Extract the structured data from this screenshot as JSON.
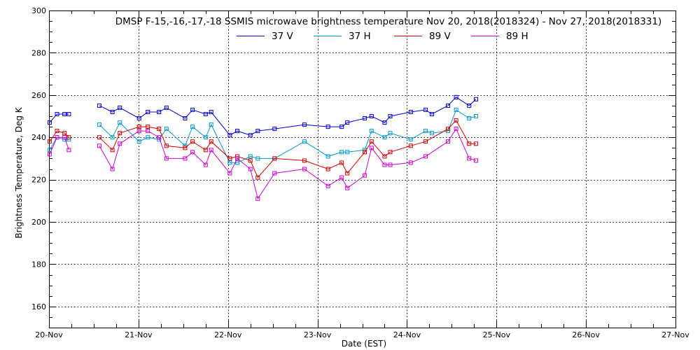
{
  "chart_data": {
    "type": "line",
    "title": "DMSP F-15,-16,-17,-18 SSMIS microwave brightness temperature Nov 20, 2018(2018324) - Nov 27, 2018(2018331)",
    "xlabel": "Date (EST)",
    "ylabel": "Brightness Temperature, Deg K",
    "xlim": [
      "2018-11-20T00:00",
      "2018-11-27T00:00"
    ],
    "ylim": [
      150,
      300
    ],
    "x_ticks": [
      "20-Nov",
      "21-Nov",
      "22-Nov",
      "23-Nov",
      "24-Nov",
      "25-Nov",
      "26-Nov",
      "27-Nov"
    ],
    "y_ticks": [
      160,
      180,
      200,
      220,
      240,
      260,
      280,
      300
    ],
    "grid": true,
    "legend_position": "top",
    "series": [
      {
        "name": "37 V",
        "color": "#0000cc",
        "points": [
          [
            "2018-11-20T00:10",
            247
          ],
          [
            "2018-11-20T02:10",
            251
          ],
          [
            "2018-11-20T04:10",
            251
          ],
          [
            "2018-11-20T05:20",
            251
          ],
          [
            "2018-11-20T13:30",
            255
          ],
          [
            "2018-11-20T17:00",
            252
          ],
          [
            "2018-11-20T19:00",
            254
          ],
          [
            "2018-11-21T00:10",
            249
          ],
          [
            "2018-11-21T02:30",
            252
          ],
          [
            "2018-11-21T05:30",
            252
          ],
          [
            "2018-11-21T07:30",
            254
          ],
          [
            "2018-11-21T12:30",
            249
          ],
          [
            "2018-11-21T14:30",
            253
          ],
          [
            "2018-11-21T18:00",
            251
          ],
          [
            "2018-11-21T19:30",
            252
          ],
          [
            "2018-11-22T00:30",
            241
          ],
          [
            "2018-11-22T02:30",
            243
          ],
          [
            "2018-11-22T06:00",
            241
          ],
          [
            "2018-11-22T08:00",
            243
          ],
          [
            "2018-11-22T12:30",
            244
          ],
          [
            "2018-11-22T20:30",
            246
          ],
          [
            "2018-11-23T02:50",
            245
          ],
          [
            "2018-11-23T06:30",
            245
          ],
          [
            "2018-11-23T08:00",
            247
          ],
          [
            "2018-11-23T12:40",
            249
          ],
          [
            "2018-11-23T14:30",
            250
          ],
          [
            "2018-11-23T18:00",
            247
          ],
          [
            "2018-11-23T19:30",
            250
          ],
          [
            "2018-11-24T01:00",
            252
          ],
          [
            "2018-11-24T05:00",
            253
          ],
          [
            "2018-11-24T06:40",
            251
          ],
          [
            "2018-11-24T11:00",
            255
          ],
          [
            "2018-11-24T13:10",
            259
          ],
          [
            "2018-11-24T16:40",
            255
          ],
          [
            "2018-11-24T18:30",
            258
          ]
        ]
      },
      {
        "name": "37 H",
        "color": "#0099cc",
        "points": [
          [
            "2018-11-20T00:10",
            234
          ],
          [
            "2018-11-20T02:10",
            240
          ],
          [
            "2018-11-20T04:10",
            239
          ],
          [
            "2018-11-20T05:20",
            239
          ],
          [
            "2018-11-20T13:30",
            246
          ],
          [
            "2018-11-20T17:00",
            240
          ],
          [
            "2018-11-20T19:00",
            247
          ],
          [
            "2018-11-21T00:10",
            238
          ],
          [
            "2018-11-21T02:30",
            240
          ],
          [
            "2018-11-21T05:30",
            239
          ],
          [
            "2018-11-21T07:30",
            244
          ],
          [
            "2018-11-21T12:30",
            236
          ],
          [
            "2018-11-21T14:30",
            245
          ],
          [
            "2018-11-21T18:00",
            240
          ],
          [
            "2018-11-21T19:30",
            246
          ],
          [
            "2018-11-22T00:30",
            228
          ],
          [
            "2018-11-22T02:30",
            228
          ],
          [
            "2018-11-22T06:00",
            231
          ],
          [
            "2018-11-22T08:00",
            230
          ],
          [
            "2018-11-22T12:30",
            230
          ],
          [
            "2018-11-22T20:30",
            238
          ],
          [
            "2018-11-23T02:50",
            231
          ],
          [
            "2018-11-23T06:30",
            233
          ],
          [
            "2018-11-23T08:00",
            233
          ],
          [
            "2018-11-23T12:40",
            234
          ],
          [
            "2018-11-23T14:30",
            243
          ],
          [
            "2018-11-23T18:00",
            240
          ],
          [
            "2018-11-23T19:30",
            242
          ],
          [
            "2018-11-24T01:00",
            239
          ],
          [
            "2018-11-24T05:00",
            243
          ],
          [
            "2018-11-24T06:40",
            242
          ],
          [
            "2018-11-24T11:00",
            243
          ],
          [
            "2018-11-24T13:10",
            253
          ],
          [
            "2018-11-24T16:40",
            249
          ],
          [
            "2018-11-24T18:30",
            250
          ]
        ]
      },
      {
        "name": "89 V",
        "color": "#cc0000",
        "points": [
          [
            "2018-11-20T00:10",
            238
          ],
          [
            "2018-11-20T02:10",
            243
          ],
          [
            "2018-11-20T04:10",
            242
          ],
          [
            "2018-11-20T05:20",
            240
          ],
          [
            "2018-11-20T13:30",
            240
          ],
          [
            "2018-11-20T17:00",
            234
          ],
          [
            "2018-11-20T19:00",
            242
          ],
          [
            "2018-11-21T00:10",
            245
          ],
          [
            "2018-11-21T02:30",
            245
          ],
          [
            "2018-11-21T05:30",
            244
          ],
          [
            "2018-11-21T07:30",
            236
          ],
          [
            "2018-11-21T12:30",
            235
          ],
          [
            "2018-11-21T14:30",
            238
          ],
          [
            "2018-11-21T18:00",
            234
          ],
          [
            "2018-11-21T19:30",
            238
          ],
          [
            "2018-11-22T00:30",
            230
          ],
          [
            "2018-11-22T02:30",
            231
          ],
          [
            "2018-11-22T06:00",
            229
          ],
          [
            "2018-11-22T08:00",
            221
          ],
          [
            "2018-11-22T12:30",
            230
          ],
          [
            "2018-11-22T20:30",
            229
          ],
          [
            "2018-11-23T02:50",
            225
          ],
          [
            "2018-11-23T06:30",
            228
          ],
          [
            "2018-11-23T08:00",
            223
          ],
          [
            "2018-11-23T12:40",
            233
          ],
          [
            "2018-11-23T14:30",
            238
          ],
          [
            "2018-11-23T18:00",
            231
          ],
          [
            "2018-11-23T19:30",
            233
          ],
          [
            "2018-11-24T01:00",
            236
          ],
          [
            "2018-11-24T05:00",
            238
          ],
          [
            "2018-11-24T11:00",
            244
          ],
          [
            "2018-11-24T13:10",
            248
          ],
          [
            "2018-11-24T16:40",
            237
          ],
          [
            "2018-11-24T18:30",
            237
          ]
        ]
      },
      {
        "name": "89 H",
        "color": "#cc00cc",
        "points": [
          [
            "2018-11-20T00:10",
            232
          ],
          [
            "2018-11-20T02:10",
            240
          ],
          [
            "2018-11-20T04:10",
            240
          ],
          [
            "2018-11-20T05:20",
            234
          ],
          [
            "2018-11-20T13:30",
            236
          ],
          [
            "2018-11-20T17:00",
            225
          ],
          [
            "2018-11-20T19:00",
            237
          ],
          [
            "2018-11-21T00:10",
            243
          ],
          [
            "2018-11-21T02:30",
            243
          ],
          [
            "2018-11-21T05:30",
            240
          ],
          [
            "2018-11-21T07:30",
            230
          ],
          [
            "2018-11-21T12:30",
            230
          ],
          [
            "2018-11-21T14:30",
            233
          ],
          [
            "2018-11-21T18:00",
            227
          ],
          [
            "2018-11-21T19:30",
            234
          ],
          [
            "2018-11-22T00:30",
            223
          ],
          [
            "2018-11-22T02:30",
            230
          ],
          [
            "2018-11-22T06:00",
            225
          ],
          [
            "2018-11-22T08:00",
            211
          ],
          [
            "2018-11-22T12:30",
            223
          ],
          [
            "2018-11-22T20:30",
            225
          ],
          [
            "2018-11-23T02:50",
            217
          ],
          [
            "2018-11-23T06:30",
            221
          ],
          [
            "2018-11-23T08:00",
            216
          ],
          [
            "2018-11-23T12:40",
            222
          ],
          [
            "2018-11-23T14:30",
            235
          ],
          [
            "2018-11-23T18:00",
            227
          ],
          [
            "2018-11-23T19:30",
            227
          ],
          [
            "2018-11-24T01:00",
            228
          ],
          [
            "2018-11-24T05:00",
            231
          ],
          [
            "2018-11-24T11:00",
            238
          ],
          [
            "2018-11-24T13:10",
            244
          ],
          [
            "2018-11-24T16:40",
            230
          ],
          [
            "2018-11-24T18:30",
            229
          ]
        ]
      }
    ]
  }
}
